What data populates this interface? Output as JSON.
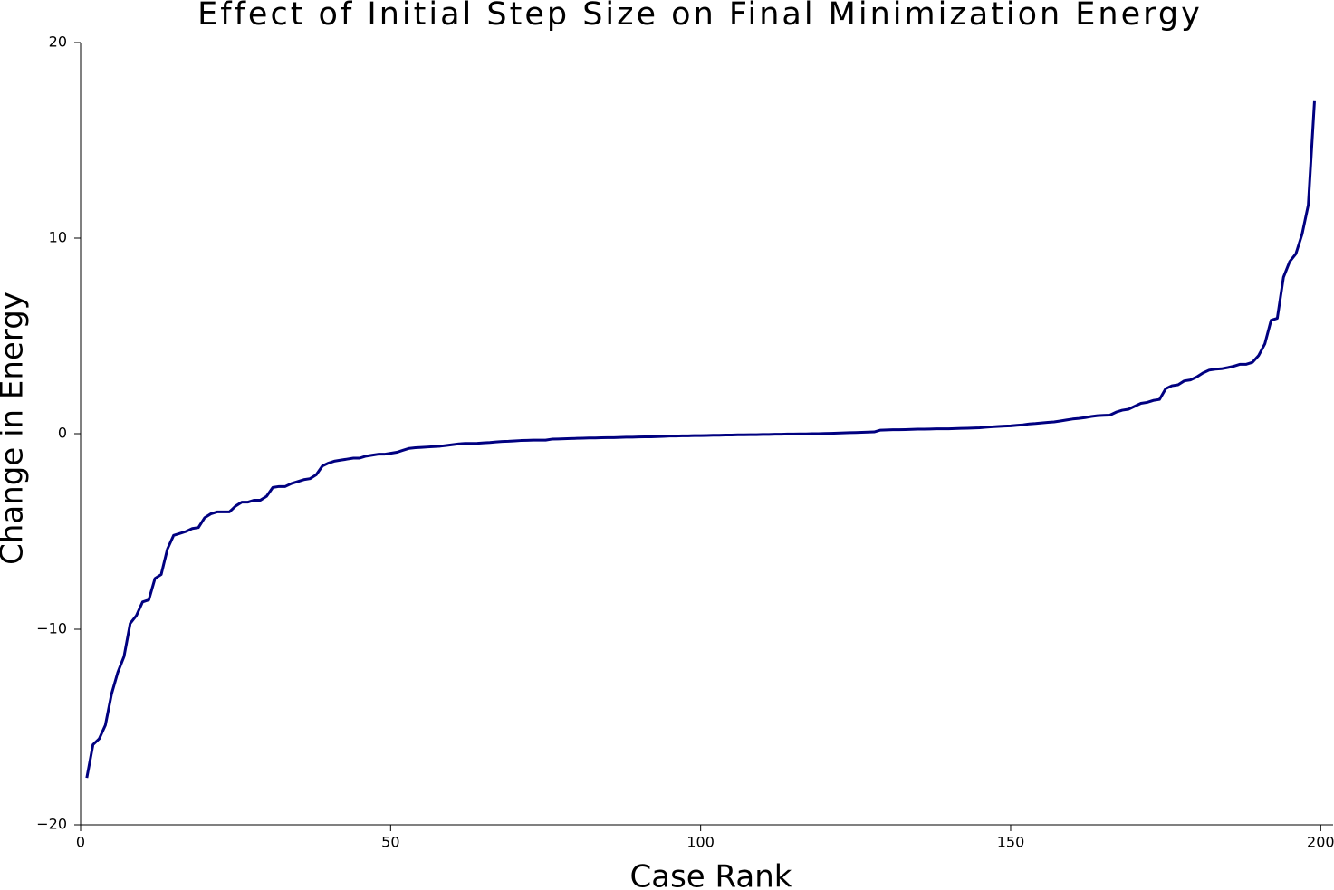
{
  "chart_data": {
    "type": "line",
    "title": "Effect of Initial Step Size on Final Minimization Energy",
    "x_label": "Case Rank",
    "y_label": "Change in Energy",
    "xlim": [
      0,
      202
    ],
    "xticks": [
      0,
      50,
      100,
      150,
      200
    ],
    "ylim": [
      -20,
      20
    ],
    "yticks": [
      {
        "value": -20,
        "label": "−20"
      },
      {
        "value": -10,
        "label": "−10"
      },
      0,
      10,
      20
    ],
    "x": [
      1,
      2,
      3,
      4,
      5,
      6,
      7,
      8,
      9,
      10,
      11,
      12,
      13,
      14,
      15,
      16,
      17,
      18,
      19,
      20,
      21,
      22,
      23,
      24,
      25,
      26,
      27,
      28,
      29,
      30,
      31,
      32,
      33,
      34,
      35,
      36,
      37,
      38,
      39,
      40,
      41,
      42,
      43,
      44,
      45,
      46,
      47,
      48,
      49,
      50,
      51,
      52,
      53,
      54,
      55,
      56,
      57,
      58,
      59,
      60,
      61,
      62,
      63,
      64,
      65,
      66,
      67,
      68,
      69,
      70,
      71,
      72,
      73,
      74,
      75,
      76,
      77,
      78,
      79,
      80,
      81,
      82,
      83,
      84,
      85,
      86,
      87,
      88,
      89,
      90,
      91,
      92,
      93,
      94,
      95,
      96,
      97,
      98,
      99,
      100,
      101,
      102,
      103,
      104,
      105,
      106,
      107,
      108,
      109,
      110,
      111,
      112,
      113,
      114,
      115,
      116,
      117,
      118,
      119,
      120,
      121,
      122,
      123,
      124,
      125,
      126,
      127,
      128,
      129,
      130,
      131,
      132,
      133,
      134,
      135,
      136,
      137,
      138,
      139,
      140,
      141,
      142,
      143,
      144,
      145,
      146,
      147,
      148,
      149,
      150,
      151,
      152,
      153,
      154,
      155,
      156,
      157,
      158,
      159,
      160,
      161,
      162,
      163,
      164,
      165,
      166,
      167,
      168,
      169,
      170,
      171,
      172,
      173,
      174,
      175,
      176,
      177,
      178,
      179,
      180,
      181,
      182,
      183,
      184,
      185,
      186,
      187,
      188,
      189,
      190,
      191,
      192,
      193,
      194,
      195,
      196,
      197,
      198,
      199
    ],
    "series": [
      {
        "name": "Change in Energy",
        "color": "#000080",
        "values": [
          -17.6,
          -15.9,
          -15.6,
          -14.9,
          -13.3,
          -12.2,
          -11.4,
          -9.7,
          -9.3,
          -8.6,
          -8.5,
          -7.4,
          -7.2,
          -5.9,
          -5.2,
          -5.1,
          -5.0,
          -4.85,
          -4.8,
          -4.3,
          -4.1,
          -4.0,
          -4.0,
          -4.0,
          -3.7,
          -3.5,
          -3.5,
          -3.4,
          -3.4,
          -3.2,
          -2.75,
          -2.7,
          -2.7,
          -2.55,
          -2.45,
          -2.35,
          -2.3,
          -2.1,
          -1.65,
          -1.5,
          -1.4,
          -1.35,
          -1.3,
          -1.25,
          -1.25,
          -1.15,
          -1.1,
          -1.05,
          -1.05,
          -1.0,
          -0.95,
          -0.85,
          -0.75,
          -0.72,
          -0.7,
          -0.68,
          -0.66,
          -0.64,
          -0.6,
          -0.56,
          -0.52,
          -0.5,
          -0.5,
          -0.49,
          -0.47,
          -0.45,
          -0.42,
          -0.4,
          -0.39,
          -0.37,
          -0.35,
          -0.34,
          -0.33,
          -0.33,
          -0.33,
          -0.28,
          -0.27,
          -0.26,
          -0.25,
          -0.24,
          -0.23,
          -0.22,
          -0.22,
          -0.21,
          -0.2,
          -0.2,
          -0.19,
          -0.18,
          -0.18,
          -0.17,
          -0.16,
          -0.16,
          -0.15,
          -0.14,
          -0.12,
          -0.12,
          -0.11,
          -0.11,
          -0.1,
          -0.1,
          -0.09,
          -0.08,
          -0.08,
          -0.07,
          -0.07,
          -0.06,
          -0.06,
          -0.05,
          -0.05,
          -0.04,
          -0.04,
          -0.03,
          -0.03,
          -0.02,
          -0.02,
          -0.01,
          -0.01,
          0,
          0,
          0.01,
          0.02,
          0.03,
          0.04,
          0.05,
          0.06,
          0.07,
          0.08,
          0.09,
          0.18,
          0.19,
          0.2,
          0.2,
          0.21,
          0.22,
          0.23,
          0.23,
          0.24,
          0.25,
          0.25,
          0.25,
          0.26,
          0.27,
          0.28,
          0.29,
          0.3,
          0.33,
          0.35,
          0.37,
          0.39,
          0.4,
          0.43,
          0.45,
          0.5,
          0.52,
          0.55,
          0.58,
          0.6,
          0.65,
          0.7,
          0.75,
          0.78,
          0.82,
          0.88,
          0.92,
          0.94,
          0.95,
          1.1,
          1.2,
          1.25,
          1.4,
          1.55,
          1.6,
          1.7,
          1.75,
          2.3,
          2.45,
          2.5,
          2.7,
          2.75,
          2.9,
          3.1,
          3.25,
          3.3,
          3.32,
          3.38,
          3.45,
          3.55,
          3.55,
          3.65,
          4.0,
          4.6,
          5.8,
          5.9,
          8.0,
          8.8,
          9.2,
          10.2,
          11.7,
          17.0
        ]
      }
    ]
  }
}
